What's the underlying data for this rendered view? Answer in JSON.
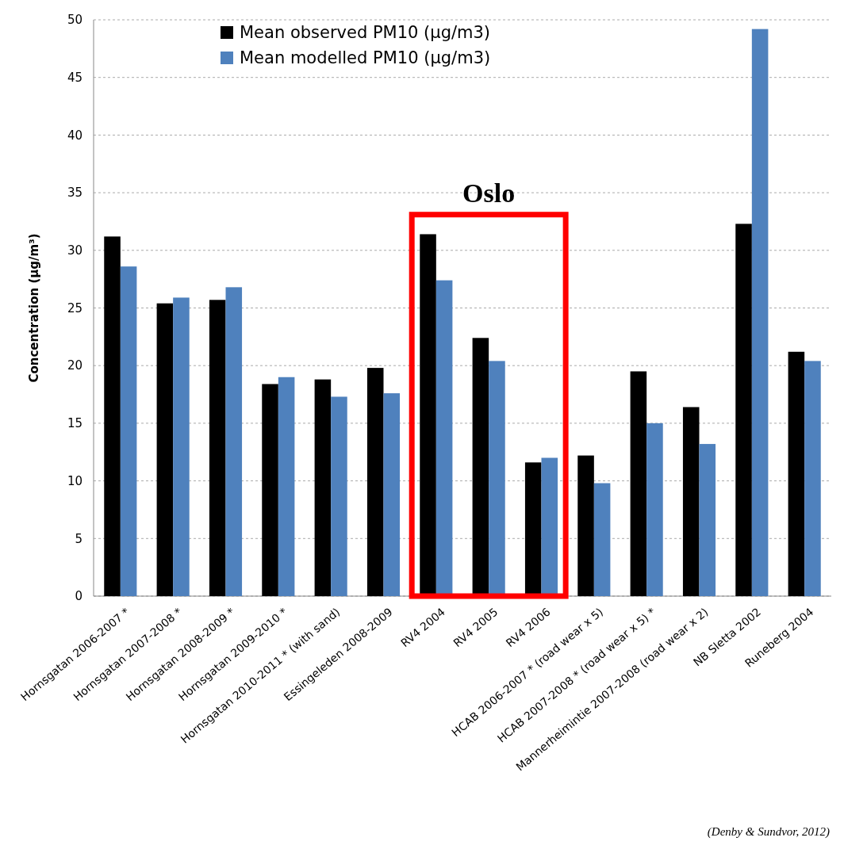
{
  "chart_data": {
    "type": "bar",
    "ylabel": "Concentration (µg/m³)",
    "categories": [
      "Hornsgatan 2006-2007 *",
      "Hornsgatan 2007-2008 *",
      "Hornsgatan 2008-2009 *",
      "Hornsgatan 2009-2010 *",
      "Hornsgatan 2010-2011 * (with sand)",
      "Essingeleden  2008-2009",
      "RV4 2004",
      "RV4 2005",
      "RV4 2006",
      "HCAB 2006-2007 * (road wear x 5)",
      "HCAB 2007-2008 * (road wear x 5) *",
      "Mannerheimintie 2007-2008 (road wear x 2)",
      "NB Sletta 2002",
      "Runeberg 2004"
    ],
    "series": [
      {
        "name": "Mean observed PM10  (µg/m3)",
        "color": "#000000",
        "values": [
          31.2,
          25.4,
          25.7,
          18.4,
          18.8,
          19.8,
          31.4,
          22.4,
          11.6,
          12.2,
          19.5,
          16.4,
          32.3,
          21.2
        ]
      },
      {
        "name": "Mean modelled PM10  (µg/m3)",
        "color": "#4f81bd",
        "values": [
          28.6,
          25.9,
          26.8,
          19.0,
          17.3,
          17.6,
          27.4,
          20.4,
          12.0,
          9.8,
          15.0,
          13.2,
          49.2,
          20.4
        ]
      }
    ],
    "ylim": [
      0,
      50
    ],
    "yticks": [
      0,
      5,
      10,
      15,
      20,
      25,
      30,
      35,
      40,
      45,
      50
    ],
    "grid": "y",
    "legend": "top left",
    "annotations": [
      "Oslo",
      "(Denby & Sundvor, 2012)"
    ]
  }
}
